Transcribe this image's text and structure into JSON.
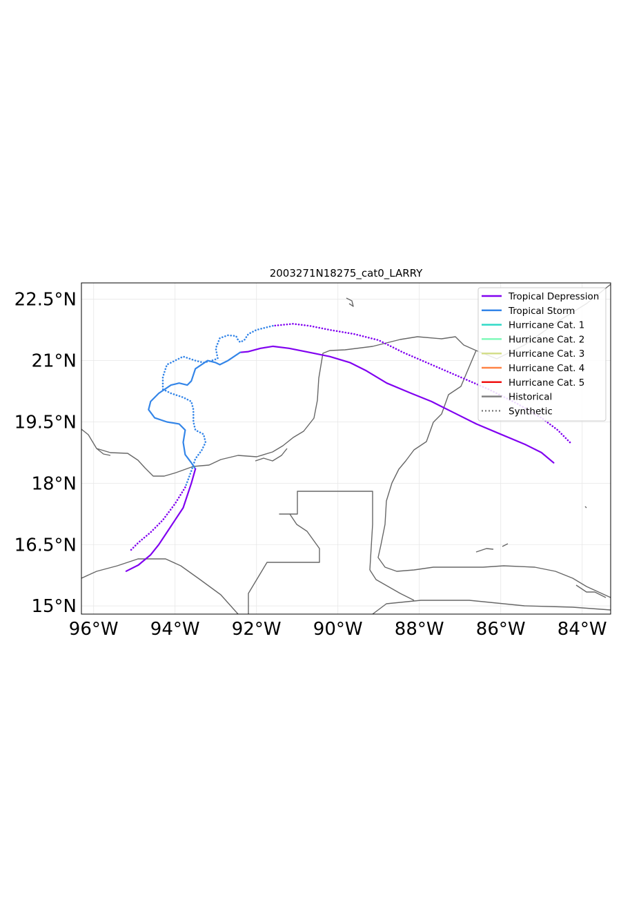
{
  "chart_data": {
    "type": "map",
    "title": "2003271N18275_cat0_LARRY",
    "projection": "PlateCarree",
    "xlim": [
      -96.3,
      -83.3
    ],
    "ylim": [
      14.8,
      22.9
    ],
    "x_ticks": [
      {
        "value": -96,
        "label": "96°W"
      },
      {
        "value": -94,
        "label": "94°W"
      },
      {
        "value": -92,
        "label": "92°W"
      },
      {
        "value": -90,
        "label": "90°W"
      },
      {
        "value": -88,
        "label": "88°W"
      },
      {
        "value": -86,
        "label": "86°W"
      },
      {
        "value": -84,
        "label": "84°W"
      }
    ],
    "y_ticks": [
      {
        "value": 15,
        "label": "15°N"
      },
      {
        "value": 16.5,
        "label": "16.5°N"
      },
      {
        "value": 18,
        "label": "18°N"
      },
      {
        "value": 19.5,
        "label": "19.5°N"
      },
      {
        "value": 21,
        "label": "21°N"
      },
      {
        "value": 22.5,
        "label": "22.5°N"
      }
    ],
    "grid": true,
    "legend_position": "top-right",
    "legend": [
      {
        "label": "Tropical Depression",
        "color": "#8000f0",
        "style": "solid"
      },
      {
        "label": "Tropical Storm",
        "color": "#3385e8",
        "style": "solid"
      },
      {
        "label": "Hurricane Cat. 1",
        "color": "#2fd9c6",
        "style": "solid"
      },
      {
        "label": "Hurricane Cat. 2",
        "color": "#7ffab9",
        "style": "solid"
      },
      {
        "label": "Hurricane Cat. 3",
        "color": "#d4de8a",
        "style": "solid"
      },
      {
        "label": "Hurricane Cat. 4",
        "color": "#ff8244",
        "style": "solid"
      },
      {
        "label": "Hurricane Cat. 5",
        "color": "#f01010",
        "style": "solid"
      },
      {
        "label": "Historical",
        "color": "#808080",
        "style": "solid"
      },
      {
        "label": "Synthetic",
        "color": "#808080",
        "style": "dotted"
      }
    ],
    "tracks": [
      {
        "kind": "historical",
        "segments": [
          {
            "category": "Tropical Depression",
            "color": "#8000f0",
            "points": [
              [
                -84.7,
                18.5
              ],
              [
                -85.0,
                18.75
              ],
              [
                -85.4,
                18.95
              ],
              [
                -86.0,
                19.2
              ],
              [
                -86.6,
                19.45
              ],
              [
                -87.2,
                19.75
              ],
              [
                -87.7,
                20.0
              ],
              [
                -88.2,
                20.2
              ],
              [
                -88.8,
                20.45
              ],
              [
                -89.3,
                20.75
              ],
              [
                -89.7,
                20.95
              ],
              [
                -90.2,
                21.1
              ],
              [
                -90.7,
                21.2
              ],
              [
                -91.2,
                21.3
              ],
              [
                -91.6,
                21.35
              ],
              [
                -91.9,
                21.3
              ],
              [
                -92.2,
                21.22
              ],
              [
                -92.4,
                21.2
              ]
            ]
          },
          {
            "category": "Tropical Storm",
            "color": "#3385e8",
            "points": [
              [
                -92.4,
                21.2
              ],
              [
                -92.7,
                21.0
              ],
              [
                -92.9,
                20.9
              ],
              [
                -93.0,
                20.95
              ],
              [
                -93.2,
                21.0
              ],
              [
                -93.5,
                20.8
              ],
              [
                -93.6,
                20.5
              ],
              [
                -93.7,
                20.4
              ],
              [
                -93.9,
                20.45
              ],
              [
                -94.1,
                20.4
              ],
              [
                -94.4,
                20.2
              ],
              [
                -94.6,
                20.0
              ],
              [
                -94.65,
                19.8
              ],
              [
                -94.5,
                19.6
              ],
              [
                -94.2,
                19.5
              ],
              [
                -93.9,
                19.45
              ],
              [
                -93.75,
                19.3
              ],
              [
                -93.8,
                19.0
              ],
              [
                -93.75,
                18.7
              ],
              [
                -93.6,
                18.5
              ],
              [
                -93.5,
                18.35
              ]
            ]
          },
          {
            "category": "Tropical Depression",
            "color": "#8000f0",
            "points": [
              [
                -93.5,
                18.35
              ],
              [
                -93.6,
                18.0
              ],
              [
                -93.7,
                17.7
              ],
              [
                -93.8,
                17.4
              ],
              [
                -94.0,
                17.1
              ],
              [
                -94.2,
                16.8
              ],
              [
                -94.4,
                16.5
              ],
              [
                -94.6,
                16.25
              ],
              [
                -94.9,
                16.0
              ],
              [
                -95.2,
                15.85
              ]
            ]
          }
        ]
      },
      {
        "kind": "synthetic",
        "segments": [
          {
            "category": "Tropical Depression",
            "color": "#8000f0",
            "points": [
              [
                -84.3,
                19.0
              ],
              [
                -84.6,
                19.3
              ],
              [
                -85.0,
                19.6
              ],
              [
                -85.6,
                19.95
              ],
              [
                -86.3,
                20.3
              ],
              [
                -87.0,
                20.6
              ],
              [
                -87.7,
                20.9
              ],
              [
                -88.4,
                21.2
              ],
              [
                -89.0,
                21.5
              ],
              [
                -89.6,
                21.65
              ],
              [
                -90.2,
                21.75
              ],
              [
                -90.7,
                21.85
              ],
              [
                -91.1,
                21.9
              ],
              [
                -91.6,
                21.85
              ]
            ]
          },
          {
            "category": "Tropical Storm",
            "color": "#3385e8",
            "points": [
              [
                -91.6,
                21.85
              ],
              [
                -92.0,
                21.75
              ],
              [
                -92.2,
                21.65
              ],
              [
                -92.3,
                21.5
              ],
              [
                -92.4,
                21.45
              ],
              [
                -92.45,
                21.5
              ],
              [
                -92.5,
                21.6
              ],
              [
                -92.7,
                21.62
              ],
              [
                -92.9,
                21.55
              ],
              [
                -93.0,
                21.3
              ],
              [
                -92.95,
                21.05
              ],
              [
                -93.1,
                21.0
              ],
              [
                -93.3,
                20.95
              ],
              [
                -93.5,
                21.0
              ],
              [
                -93.8,
                21.1
              ],
              [
                -94.0,
                21.0
              ],
              [
                -94.2,
                20.9
              ],
              [
                -94.3,
                20.6
              ],
              [
                -94.3,
                20.3
              ],
              [
                -94.1,
                20.2
              ],
              [
                -93.8,
                20.1
              ],
              [
                -93.6,
                20.0
              ],
              [
                -93.55,
                19.8
              ],
              [
                -93.55,
                19.5
              ],
              [
                -93.5,
                19.3
              ],
              [
                -93.3,
                19.2
              ],
              [
                -93.25,
                19.0
              ],
              [
                -93.35,
                18.8
              ],
              [
                -93.5,
                18.6
              ],
              [
                -93.6,
                18.3
              ],
              [
                -93.75,
                17.9
              ]
            ]
          },
          {
            "category": "Tropical Depression",
            "color": "#8000f0",
            "points": [
              [
                -93.75,
                17.9
              ],
              [
                -94.0,
                17.5
              ],
              [
                -94.3,
                17.1
              ],
              [
                -94.6,
                16.8
              ],
              [
                -94.9,
                16.55
              ],
              [
                -95.1,
                16.35
              ]
            ]
          }
        ]
      }
    ]
  }
}
